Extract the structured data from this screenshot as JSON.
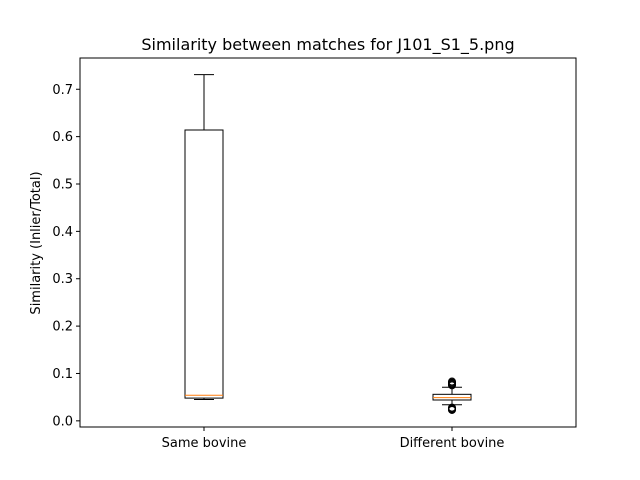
{
  "chart_data": {
    "type": "boxplot",
    "title": "Similarity between matches for J101_S1_5.png",
    "xlabel": "",
    "ylabel": "Similarity (Inlier/Total)",
    "ylim": [
      -0.013,
      0.766
    ],
    "yticks": [
      0.0,
      0.1,
      0.2,
      0.3,
      0.4,
      0.5,
      0.6,
      0.7
    ],
    "ytick_labels": [
      "0.0",
      "0.1",
      "0.2",
      "0.3",
      "0.4",
      "0.5",
      "0.6",
      "0.7"
    ],
    "grid": false,
    "categories": [
      "Same bovine",
      "Different bovine"
    ],
    "boxes": [
      {
        "category": "Same bovine",
        "whisker_low": 0.045,
        "q1": 0.048,
        "median": 0.054,
        "q3": 0.614,
        "whisker_high": 0.731,
        "outliers": []
      },
      {
        "category": "Different bovine",
        "whisker_low": 0.034,
        "q1": 0.044,
        "median": 0.049,
        "q3": 0.056,
        "whisker_high": 0.071,
        "outliers": [
          0.028,
          0.026,
          0.025,
          0.024,
          0.023,
          0.075,
          0.077,
          0.079,
          0.081,
          0.083
        ]
      }
    ],
    "colors": {
      "box": "#000000",
      "median": "#ff7f0e",
      "outlier": "#000000"
    }
  }
}
